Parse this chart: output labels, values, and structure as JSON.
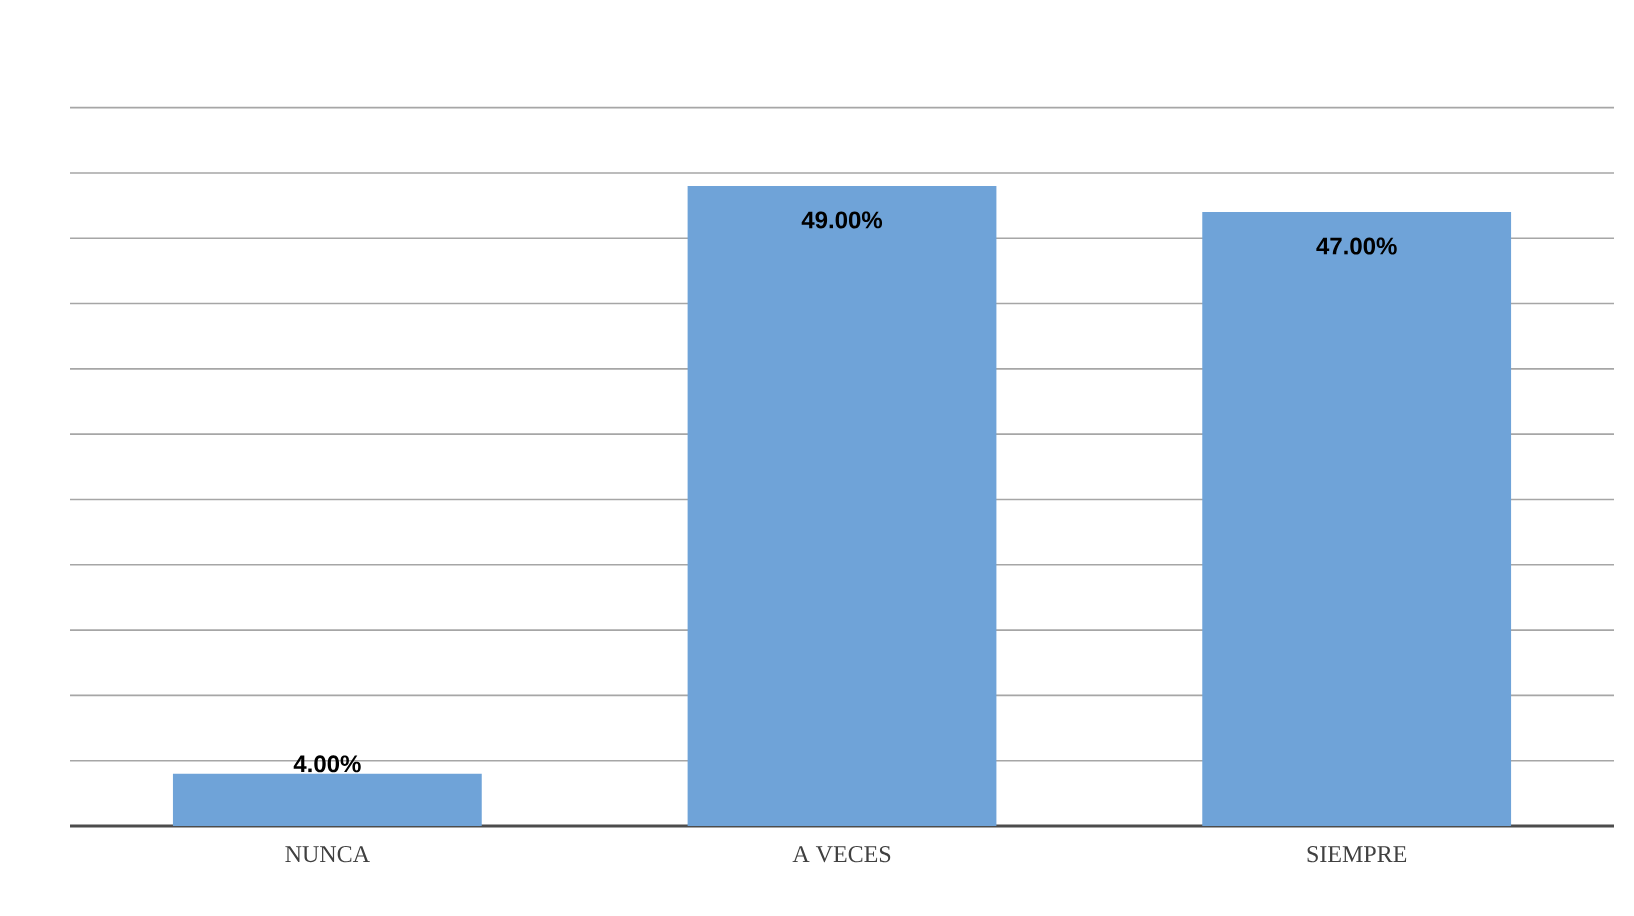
{
  "chart_data": {
    "type": "bar",
    "categories": [
      "NUNCA",
      "A VECES",
      "SIEMPRE"
    ],
    "values": [
      4,
      49,
      47
    ],
    "value_labels": [
      "4.00%",
      "49.00%",
      "47.00%"
    ],
    "color": "#6fa3d8",
    "grid": "y"
  }
}
